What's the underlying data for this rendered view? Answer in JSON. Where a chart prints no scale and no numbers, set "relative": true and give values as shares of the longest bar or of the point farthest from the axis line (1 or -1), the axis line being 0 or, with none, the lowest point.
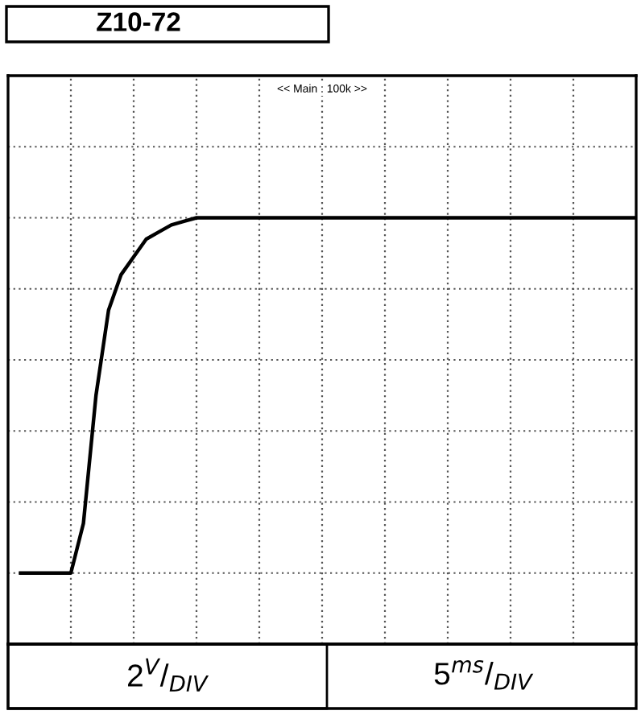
{
  "chart_data": {
    "type": "line",
    "title": "Z10-72",
    "relative": true,
    "categories": [
      null,
      null,
      null,
      null,
      null,
      null,
      null,
      null,
      null,
      null,
      null,
      null,
      null,
      null,
      null,
      null,
      null,
      null,
      null,
      null,
      null,
      null,
      null,
      null,
      null,
      null,
      null,
      null,
      null,
      null,
      null,
      null,
      null,
      null,
      null,
      null,
      null,
      null,
      null,
      null,
      null,
      null,
      null,
      null,
      null,
      null,
      null,
      null,
      null,
      null,
      null
    ],
    "series": [
      {
        "color": "#000000",
        "values": [
          null,
          0,
          0,
          0,
          0,
          0,
          0.14,
          0.5,
          0.74,
          0.84,
          0.89,
          0.94,
          0.96,
          0.98,
          0.99,
          1,
          1,
          1,
          1,
          1,
          1,
          1,
          1,
          1,
          1,
          1,
          1,
          1,
          1,
          1,
          1,
          1,
          1,
          1,
          1,
          1,
          1,
          1,
          1,
          1,
          1,
          1,
          1,
          1,
          1,
          1,
          1,
          1,
          1,
          1,
          1
        ]
      }
    ],
    "grid": true,
    "marker": "none",
    "line_style": "solid",
    "annotations": [
      "<< Main : 100k >>",
      "2$^{V}$/$_{DIV}$",
      "5$^{ms}$/$_{DIV}$"
    ]
  }
}
